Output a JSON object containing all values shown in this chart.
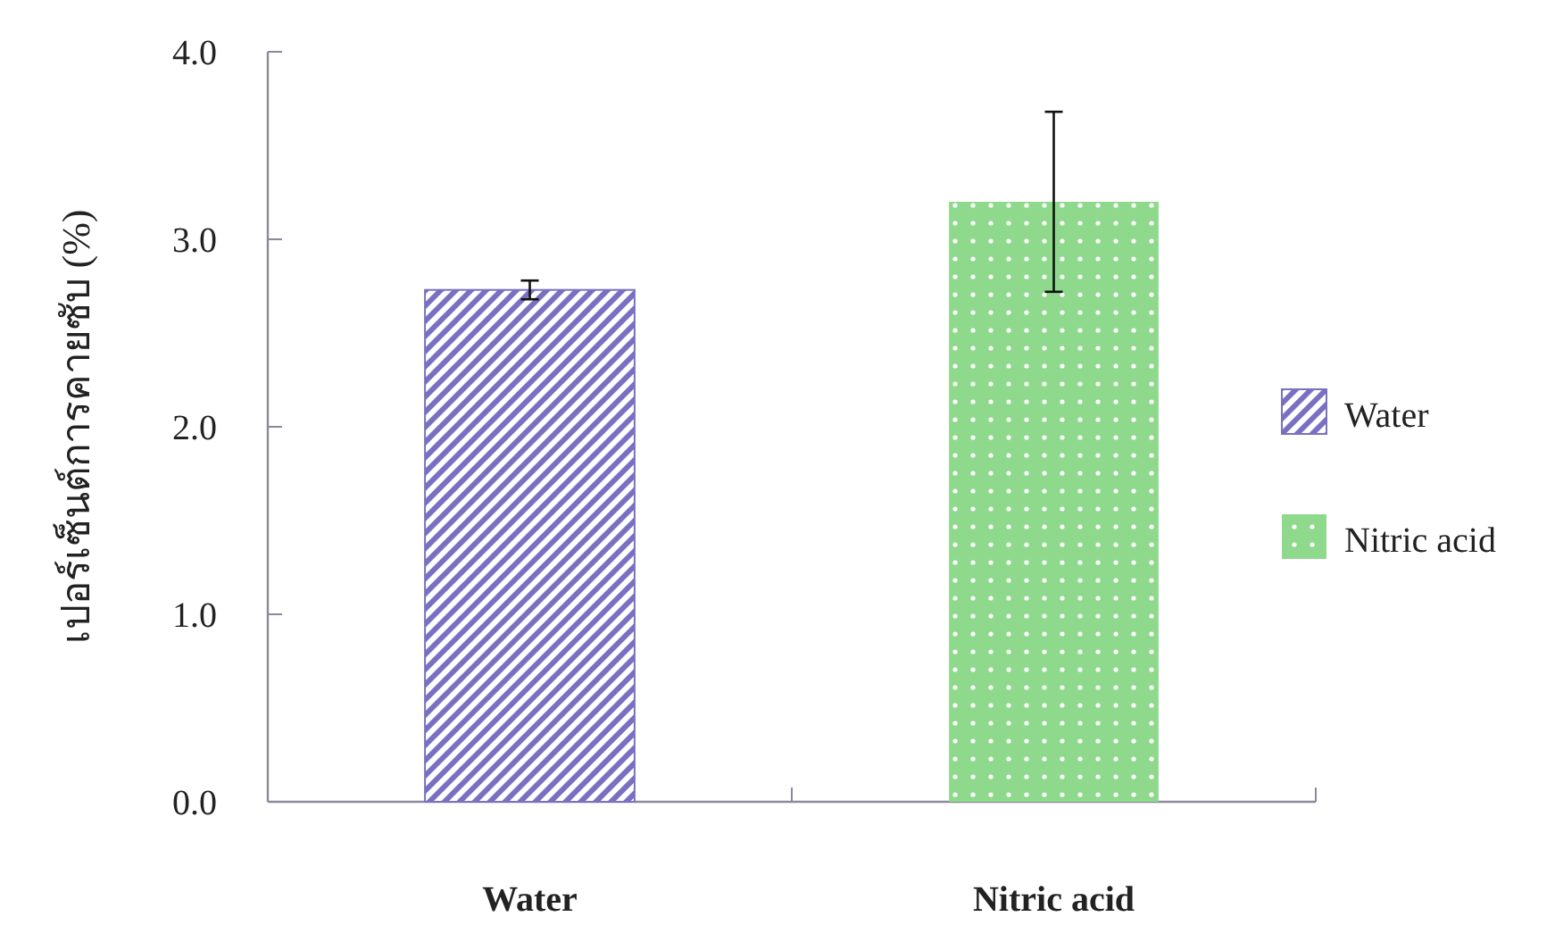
{
  "chart_data": {
    "type": "bar",
    "ylabel": "เปอร์เซ็นต์การคายซับ (%)",
    "categories": [
      "Water",
      "Nitric acid"
    ],
    "series": [
      {
        "name": "Water",
        "color": "#7a70c2",
        "values": [
          2.73,
          null
        ],
        "errors": [
          0.05,
          null
        ]
      },
      {
        "name": "Nitric acid",
        "color": "#8fd98c",
        "values": [
          null,
          3.2
        ],
        "errors": [
          null,
          0.48
        ]
      }
    ],
    "ylim": [
      0,
      4
    ],
    "yticks": [
      {
        "value": 0,
        "label": "0.0"
      },
      {
        "value": 1,
        "label": "1.0"
      },
      {
        "value": 2,
        "label": "2.0"
      },
      {
        "value": 3,
        "label": "3.0"
      },
      {
        "value": 4,
        "label": "4.0"
      }
    ],
    "grid": false,
    "legend": "right"
  }
}
